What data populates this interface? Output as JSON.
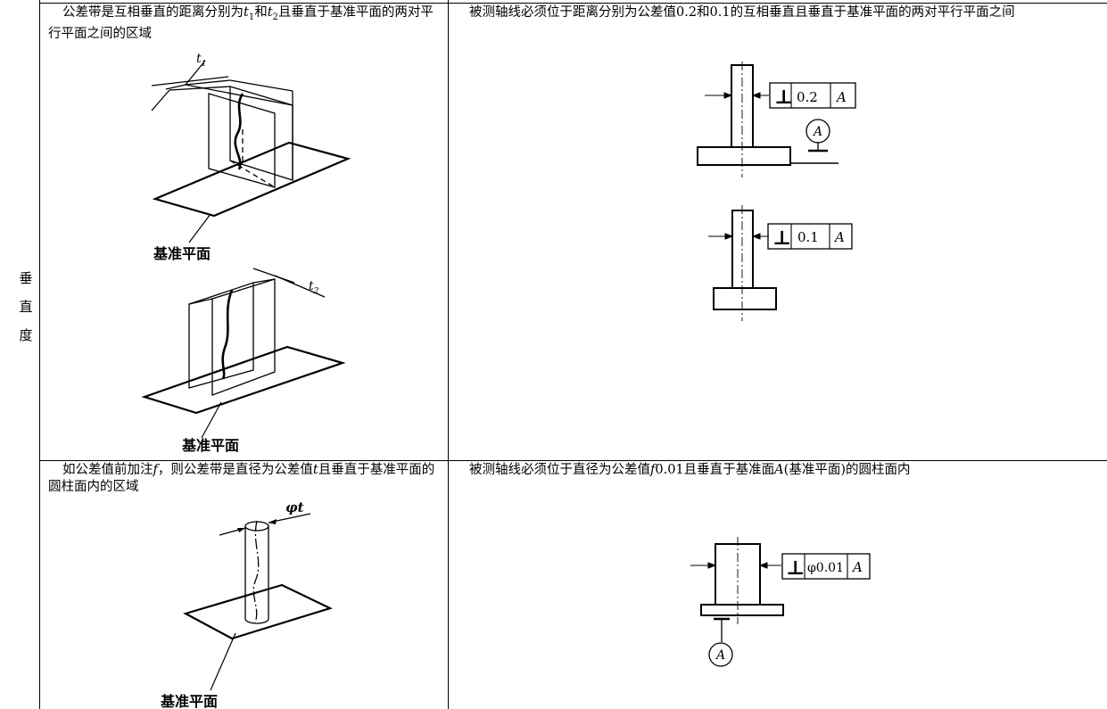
{
  "category": {
    "chars": [
      "垂",
      "直",
      "度"
    ]
  },
  "row1": {
    "zone": {
      "text_a": "公差带是互相垂直的距离分别为",
      "t1": "t",
      "t1_sub": "1",
      "text_b": "和",
      "t2": "t",
      "t2_sub": "2",
      "text_c": "且垂直于基准平面的两对平行平面之间的区域",
      "fig_top": {
        "dim_label": "t",
        "dim_sub": "1",
        "datum_label": "基准平面"
      },
      "fig_bottom": {
        "dim_label": "t",
        "dim_sub": "2",
        "datum_label": "基准平面"
      }
    },
    "spec": {
      "text": "被测轴线必须位于距离分别为公差值0.2和0.1的互相垂直且垂直于基准平面的两对平行平面之间",
      "frame_top": {
        "symbol": "⊥",
        "value": "0.2",
        "datum": "A"
      },
      "datum_marker": "A",
      "frame_bottom": {
        "symbol": "⊥",
        "value": "0.1",
        "datum": "A"
      }
    }
  },
  "row2": {
    "zone": {
      "text_a": "如公差值前加注",
      "f": "f",
      "text_b": "，则公差带是直径为公差值",
      "t": "t",
      "text_c": "且垂直于基准平面的圆柱面内的区域",
      "fig": {
        "dim_label": "φt",
        "datum_label": "基准平面"
      }
    },
    "spec": {
      "text_a": "被测轴线必须位于直径为公差值",
      "f": "f",
      "text_b": "0.01且垂直于基准面",
      "A": "A",
      "text_c": "(基准平面)的圆柱面内",
      "frame": {
        "symbol": "⊥",
        "value": "φ0.01",
        "datum": "A"
      },
      "datum_marker": "A"
    }
  }
}
